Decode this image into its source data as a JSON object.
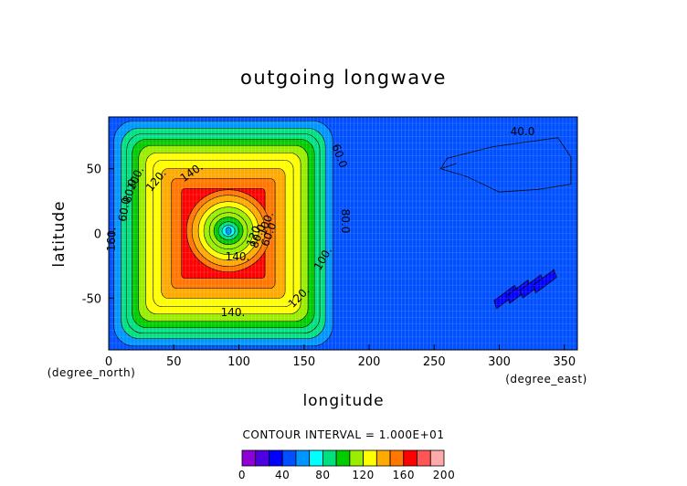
{
  "chart_data": {
    "type": "heatmap",
    "title": "outgoing longwave",
    "xlabel": "longitude",
    "ylabel": "latitude",
    "x_unit_label": "(degree_east)",
    "y_unit_label": "(degree_north)",
    "xlim": [
      0,
      360
    ],
    "ylim": [
      -90,
      90
    ],
    "x_ticks": [
      0,
      50,
      100,
      150,
      200,
      250,
      300,
      350
    ],
    "y_ticks": [
      -50,
      0,
      50
    ],
    "grid": true,
    "field": {
      "background_value": 50,
      "square_center": [
        88,
        0
      ],
      "square_halfwidths": [
        84,
        87
      ],
      "ring_levels": [
        60,
        80,
        90,
        100,
        110,
        120,
        130,
        140,
        150,
        160
      ],
      "core_center": [
        92,
        2
      ],
      "core_levels": [
        150,
        140,
        130,
        120,
        110,
        100,
        90,
        80
      ],
      "core_min_value": 60,
      "cold_patches": [
        {
          "region": "northeast",
          "lon_range": [
            255,
            355
          ],
          "lat_range": [
            32,
            74
          ],
          "value": 40
        },
        {
          "region": "southeast",
          "lon_range": [
            298,
            344
          ],
          "lat_range": [
            -58,
            -28
          ],
          "value": 30
        }
      ]
    },
    "contour_labels": [
      "40.0",
      "60.0",
      "80.0",
      "100.",
      "120.",
      "140.",
      "160.",
      "60.0",
      "80.0",
      "100.",
      "120.",
      "140.",
      "140.",
      "120.",
      "100.",
      "80.0",
      "60.0"
    ],
    "colorbar": {
      "caption": "CONTOUR INTERVAL = 1.000E+01",
      "min": 0,
      "max": 200,
      "tick_labels": [
        "0",
        "40",
        "80",
        "120",
        "160",
        "200"
      ],
      "colors": [
        "#8e00d6",
        "#4d00e0",
        "#0000ff",
        "#0050ff",
        "#0095ff",
        "#00ffff",
        "#00e080",
        "#00cc00",
        "#99ee00",
        "#ffff00",
        "#ffaa00",
        "#ff7700",
        "#ff0000",
        "#ff5555",
        "#ffaaaa"
      ]
    }
  }
}
